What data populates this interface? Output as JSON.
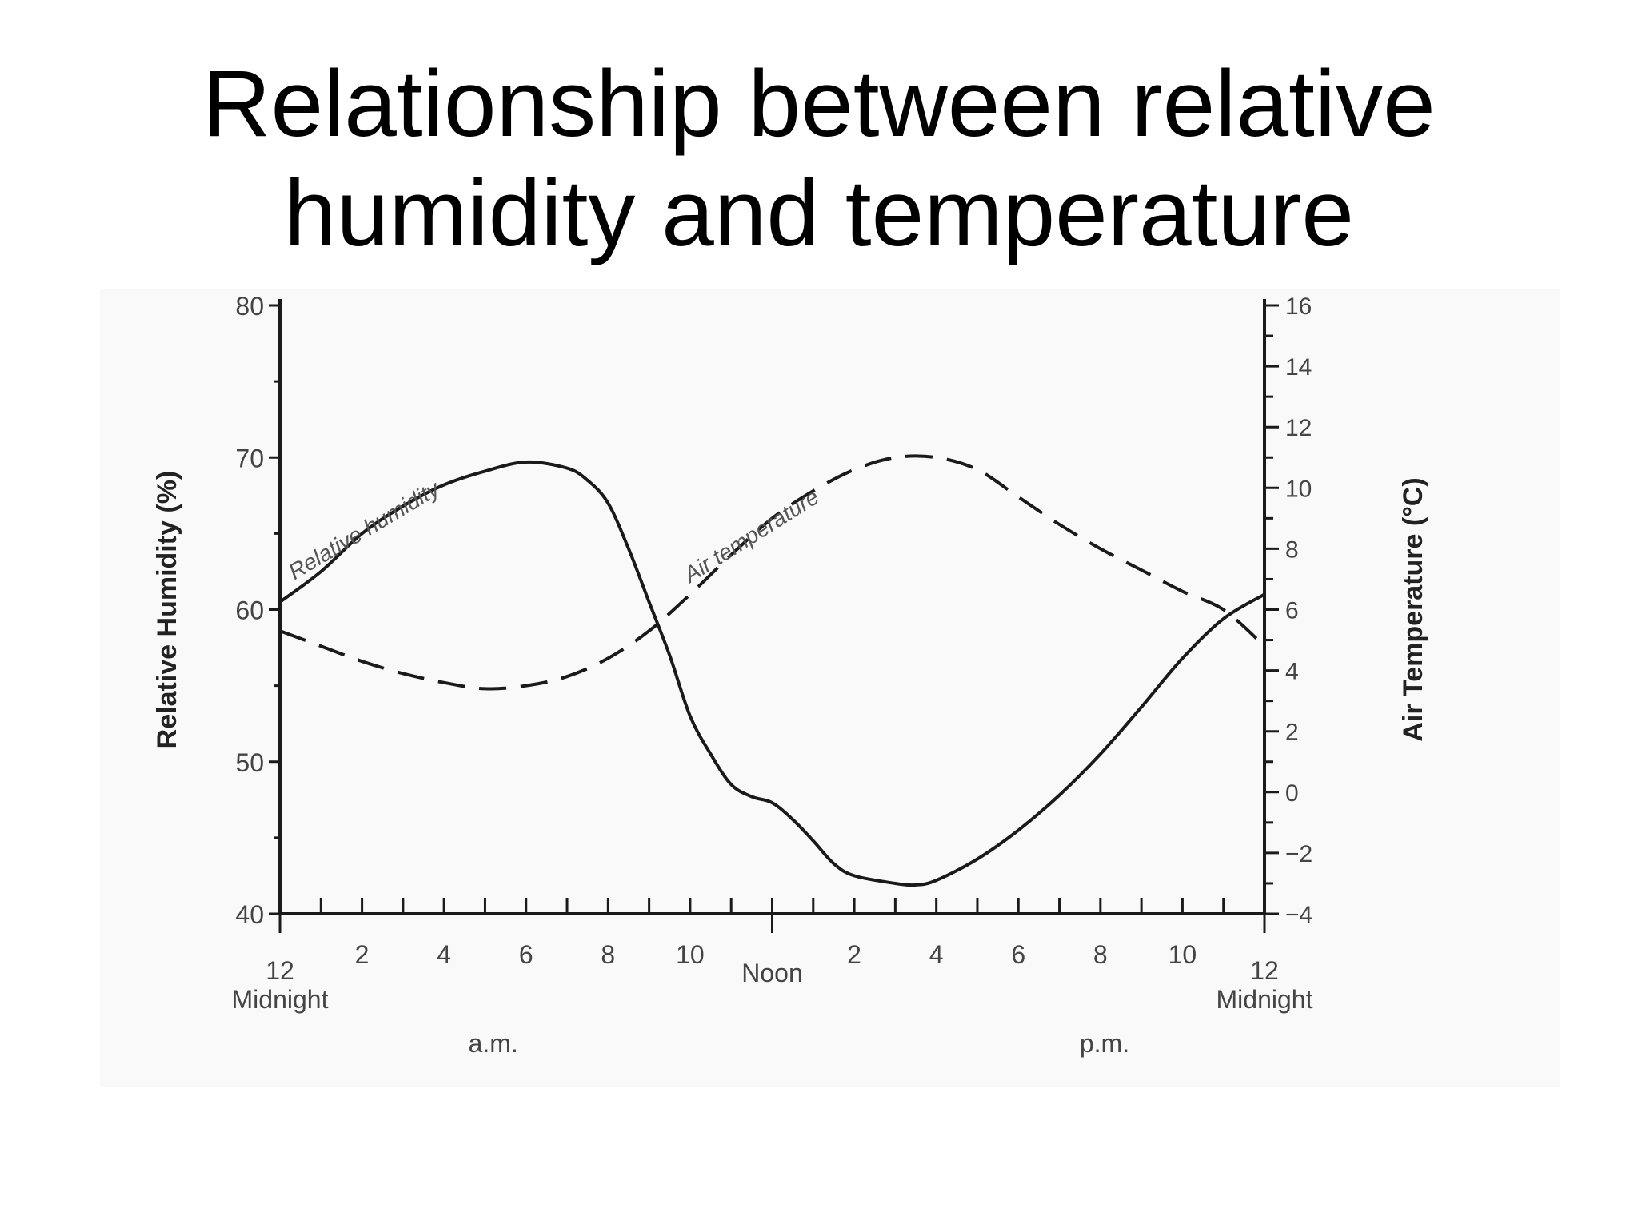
{
  "slide": {
    "title_line1": "Relationship between relative",
    "title_line2": "humidity and temperature"
  },
  "colors": {
    "background": "#ffffff",
    "chart_panel": "#f9f9f9",
    "ink": "#1a1a1a",
    "label_gray": "#444444"
  },
  "chart_data": {
    "type": "line",
    "y_left_label": "Relative Humidity (%)",
    "y_right_label": "Air Temperature (°C)",
    "y_left_range": [
      40,
      80
    ],
    "y_right_range": [
      -4,
      16
    ],
    "x_range": [
      0,
      24
    ],
    "y_left_ticks": [
      "80",
      "70",
      "60",
      "50",
      "40"
    ],
    "y_right_ticks": [
      "16",
      "14",
      "12",
      "10",
      "8",
      "6",
      "4",
      "2",
      "0",
      "−2",
      "−4"
    ],
    "x_ticks": [
      {
        "x": 0,
        "label": "12"
      },
      {
        "x": 2,
        "label": "2"
      },
      {
        "x": 4,
        "label": "4"
      },
      {
        "x": 6,
        "label": "6"
      },
      {
        "x": 8,
        "label": "8"
      },
      {
        "x": 10,
        "label": "10"
      },
      {
        "x": 12,
        "label": "Noon"
      },
      {
        "x": 14,
        "label": "2"
      },
      {
        "x": 16,
        "label": "4"
      },
      {
        "x": 18,
        "label": "6"
      },
      {
        "x": 20,
        "label": "8"
      },
      {
        "x": 22,
        "label": "10"
      },
      {
        "x": 24,
        "label": "12"
      }
    ],
    "x_sublabels": {
      "left_midnight": "Midnight",
      "right_midnight": "Midnight",
      "am": "a.m.",
      "pm": "p.m."
    },
    "series": [
      {
        "name": "Relative humidity",
        "axis": "left",
        "style": "solid",
        "points": [
          [
            0,
            60.5
          ],
          [
            1,
            62.5
          ],
          [
            2,
            65
          ],
          [
            3,
            66.8
          ],
          [
            4,
            68.2
          ],
          [
            5,
            69.1
          ],
          [
            6,
            69.7
          ],
          [
            7,
            69.3
          ],
          [
            7.5,
            68.5
          ],
          [
            8,
            67
          ],
          [
            8.5,
            64
          ],
          [
            9,
            60.5
          ],
          [
            9.5,
            57
          ],
          [
            10,
            53
          ],
          [
            10.5,
            50.5
          ],
          [
            11,
            48.5
          ],
          [
            11.5,
            47.7
          ],
          [
            12,
            47.3
          ],
          [
            12.5,
            46.2
          ],
          [
            13,
            44.8
          ],
          [
            13.5,
            43.3
          ],
          [
            14,
            42.5
          ],
          [
            15,
            42
          ],
          [
            15.5,
            41.9
          ],
          [
            16,
            42.2
          ],
          [
            17,
            43.6
          ],
          [
            18,
            45.5
          ],
          [
            19,
            47.8
          ],
          [
            20,
            50.5
          ],
          [
            21,
            53.6
          ],
          [
            22,
            56.8
          ],
          [
            23,
            59.4
          ],
          [
            24,
            61
          ]
        ]
      },
      {
        "name": "Air temperature",
        "axis": "right",
        "style": "dashed",
        "points": [
          [
            0,
            5.3
          ],
          [
            1,
            4.8
          ],
          [
            2,
            4.3
          ],
          [
            3,
            3.9
          ],
          [
            4,
            3.6
          ],
          [
            5,
            3.4
          ],
          [
            6,
            3.5
          ],
          [
            7,
            3.8
          ],
          [
            8,
            4.4
          ],
          [
            9,
            5.3
          ],
          [
            10,
            6.5
          ],
          [
            11,
            7.8
          ],
          [
            12,
            9
          ],
          [
            13,
            9.9
          ],
          [
            14,
            10.6
          ],
          [
            15,
            11
          ],
          [
            16,
            11
          ],
          [
            17,
            10.6
          ],
          [
            18,
            9.7
          ],
          [
            19,
            8.8
          ],
          [
            20,
            8
          ],
          [
            21,
            7.3
          ],
          [
            22,
            6.6
          ],
          [
            23,
            6
          ],
          [
            24,
            4.8
          ]
        ]
      }
    ],
    "annotations": [
      {
        "text": "Relative humidity",
        "series": "Relative humidity"
      },
      {
        "text": "Air temperature",
        "series": "Air temperature"
      }
    ],
    "grid": false,
    "legend": "none"
  }
}
